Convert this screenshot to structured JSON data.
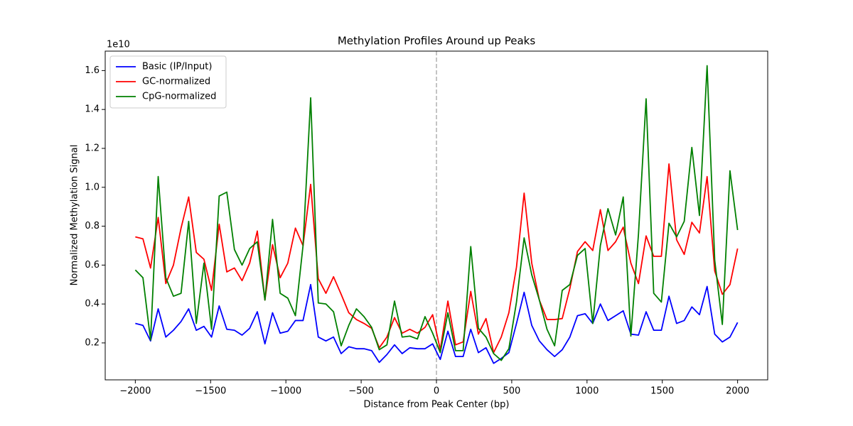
{
  "chart_data": {
    "type": "line",
    "title": "Methylation Profiles Around up Peaks",
    "xlabel": "Distance from Peak Center (bp)",
    "ylabel": "Normalized Methylation Signal",
    "y_offset_label": "1e10",
    "x": [
      -2000,
      -1949.4,
      -1898.7,
      -1848.1,
      -1797.5,
      -1746.8,
      -1696.2,
      -1645.6,
      -1595.0,
      -1544.3,
      -1493.7,
      -1443.0,
      -1392.4,
      -1341.8,
      -1291.1,
      -1240.5,
      -1189.9,
      -1139.2,
      -1088.6,
      -1038.0,
      -987.3,
      -936.7,
      -886.1,
      -835.4,
      -784.8,
      -734.2,
      -683.5,
      -632.9,
      -582.3,
      -531.6,
      -481.0,
      -430.4,
      -379.7,
      -329.1,
      -278.5,
      -227.8,
      -177.2,
      -126.6,
      -75.9,
      -25.3,
      25.3,
      75.9,
      126.6,
      177.2,
      227.8,
      278.5,
      329.1,
      379.7,
      430.4,
      481.0,
      531.6,
      582.3,
      632.9,
      683.5,
      734.2,
      784.8,
      835.4,
      886.1,
      936.7,
      987.3,
      1038.0,
      1088.6,
      1139.2,
      1189.9,
      1240.5,
      1291.1,
      1341.8,
      1392.4,
      1443.0,
      1493.7,
      1544.3,
      1595.0,
      1645.6,
      1696.2,
      1746.8,
      1797.5,
      1848.1,
      1898.7,
      1949.4,
      2000
    ],
    "series": [
      {
        "name": "Basic (IP/Input)",
        "color": "#0000ff",
        "values": [
          0.3,
          0.29,
          0.21,
          0.375,
          0.23,
          0.265,
          0.31,
          0.375,
          0.265,
          0.285,
          0.23,
          0.39,
          0.27,
          0.265,
          0.24,
          0.275,
          0.36,
          0.195,
          0.355,
          0.25,
          0.26,
          0.315,
          0.315,
          0.5,
          0.23,
          0.21,
          0.23,
          0.145,
          0.18,
          0.17,
          0.17,
          0.16,
          0.1,
          0.14,
          0.19,
          0.145,
          0.175,
          0.17,
          0.17,
          0.195,
          0.115,
          0.26,
          0.13,
          0.13,
          0.27,
          0.15,
          0.175,
          0.095,
          0.12,
          0.15,
          0.3,
          0.46,
          0.29,
          0.21,
          0.165,
          0.13,
          0.165,
          0.23,
          0.34,
          0.35,
          0.3,
          0.4,
          0.315,
          0.34,
          0.365,
          0.245,
          0.24,
          0.36,
          0.265,
          0.265,
          0.44,
          0.3,
          0.315,
          0.385,
          0.345,
          0.49,
          0.245,
          0.205,
          0.23,
          0.305
        ]
      },
      {
        "name": "GC-normalized",
        "color": "#ff0000",
        "values": [
          0.745,
          0.735,
          0.585,
          0.845,
          0.505,
          0.6,
          0.79,
          0.95,
          0.665,
          0.63,
          0.47,
          0.81,
          0.565,
          0.585,
          0.52,
          0.61,
          0.775,
          0.42,
          0.705,
          0.535,
          0.61,
          0.79,
          0.7,
          1.015,
          0.53,
          0.455,
          0.54,
          0.45,
          0.355,
          0.32,
          0.3,
          0.275,
          0.175,
          0.23,
          0.33,
          0.25,
          0.27,
          0.25,
          0.28,
          0.345,
          0.165,
          0.415,
          0.19,
          0.205,
          0.465,
          0.245,
          0.325,
          0.15,
          0.23,
          0.355,
          0.59,
          0.97,
          0.61,
          0.42,
          0.32,
          0.32,
          0.325,
          0.48,
          0.67,
          0.72,
          0.675,
          0.885,
          0.675,
          0.72,
          0.795,
          0.61,
          0.505,
          0.75,
          0.645,
          0.645,
          1.12,
          0.73,
          0.655,
          0.82,
          0.765,
          1.055,
          0.57,
          0.45,
          0.5,
          0.685
        ]
      },
      {
        "name": "CpG-normalized",
        "color": "#008000",
        "values": [
          0.575,
          0.535,
          0.215,
          1.055,
          0.535,
          0.44,
          0.455,
          0.825,
          0.3,
          0.61,
          0.27,
          0.955,
          0.975,
          0.68,
          0.6,
          0.685,
          0.72,
          0.42,
          0.835,
          0.455,
          0.43,
          0.34,
          0.7,
          1.46,
          0.405,
          0.4,
          0.36,
          0.185,
          0.29,
          0.375,
          0.335,
          0.28,
          0.165,
          0.19,
          0.415,
          0.23,
          0.235,
          0.22,
          0.335,
          0.25,
          0.15,
          0.355,
          0.16,
          0.16,
          0.695,
          0.275,
          0.23,
          0.145,
          0.11,
          0.17,
          0.41,
          0.74,
          0.55,
          0.42,
          0.27,
          0.185,
          0.47,
          0.5,
          0.65,
          0.685,
          0.3,
          0.7,
          0.89,
          0.755,
          0.95,
          0.235,
          0.76,
          1.455,
          0.455,
          0.41,
          0.815,
          0.745,
          0.825,
          1.205,
          0.855,
          1.625,
          0.625,
          0.295,
          1.085,
          0.78
        ]
      }
    ],
    "xlim": [
      -2200,
      2200
    ],
    "ylim": [
      0.01,
      1.7
    ],
    "xticks": [
      {
        "value": -2000,
        "label": "−2000"
      },
      {
        "value": -1500,
        "label": "−1500"
      },
      {
        "value": -1000,
        "label": "−1000"
      },
      {
        "value": -500,
        "label": "−500"
      },
      0,
      500,
      1000,
      1500,
      2000
    ],
    "yticks": [
      0.2,
      0.4,
      0.6,
      0.8,
      {
        "value": 1,
        "label": "1.0"
      },
      1.2,
      1.4,
      1.6
    ],
    "vline": {
      "x": 0,
      "color": "#b0b0b0"
    },
    "legend": "upper left",
    "grid": false
  }
}
